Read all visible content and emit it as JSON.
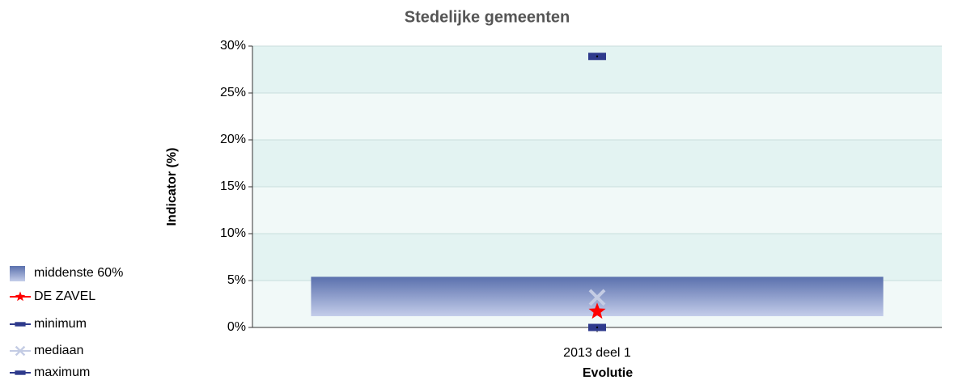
{
  "chart_data": {
    "type": "range-marker",
    "title": "Stedelijke gemeenten",
    "x_label": "Evolutie",
    "y_label": "Indicator (%)",
    "categories": [
      "2013 deel 1"
    ],
    "ylim": [
      0,
      30
    ],
    "yticks": [
      {
        "value": 0,
        "label": "0%"
      },
      {
        "value": 5,
        "label": "5%"
      },
      {
        "value": 10,
        "label": "10%"
      },
      {
        "value": 15,
        "label": "15%"
      },
      {
        "value": 20,
        "label": "20%"
      },
      {
        "value": 25,
        "label": "25%"
      },
      {
        "value": 30,
        "label": "30%"
      }
    ],
    "series": [
      {
        "name": "middenste 60%",
        "kind": "range",
        "color": "#5a70ad",
        "low": [
          1.2
        ],
        "high": [
          5.4
        ]
      },
      {
        "name": "DE ZAVEL",
        "kind": "star",
        "color": "#ff0000",
        "values": [
          1.7
        ]
      },
      {
        "name": "minimum",
        "kind": "square",
        "color": "#2e3a8c",
        "values": [
          0
        ]
      },
      {
        "name": "mediaan",
        "kind": "cross",
        "color": "#c4cce4",
        "values": [
          3.2
        ]
      },
      {
        "name": "maximum",
        "kind": "square",
        "color": "#2e3a8c",
        "values": [
          28.9
        ]
      }
    ],
    "legend": "left-bottom"
  }
}
